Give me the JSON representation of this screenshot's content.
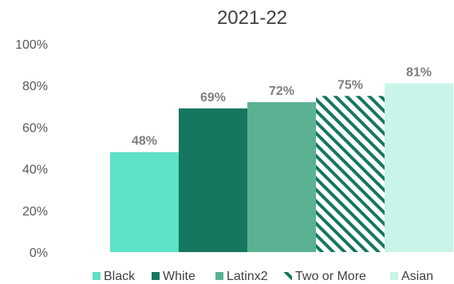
{
  "chart_data": {
    "type": "bar",
    "title": "2021-22",
    "xlabel": "",
    "ylabel": "",
    "ylim": [
      0,
      100
    ],
    "yticks": [
      "0%",
      "20%",
      "40%",
      "60%",
      "80%",
      "100%"
    ],
    "grid": false,
    "legend_position": "bottom",
    "series": [
      {
        "name": "Black",
        "value": 48,
        "label": "48%",
        "color": "#5ee1c4",
        "pattern": "solid"
      },
      {
        "name": "White",
        "value": 69,
        "label": "69%",
        "color": "#157760",
        "pattern": "solid"
      },
      {
        "name": "Latinx2",
        "value": 72,
        "label": "72%",
        "color": "#5bb293",
        "pattern": "solid"
      },
      {
        "name": "Two or More",
        "value": 75,
        "label": "75%",
        "color": "#157760",
        "pattern": "diagonal-stripes"
      },
      {
        "name": "Asian",
        "value": 81,
        "label": "81%",
        "color": "#c8f4e9",
        "pattern": "solid"
      }
    ]
  }
}
